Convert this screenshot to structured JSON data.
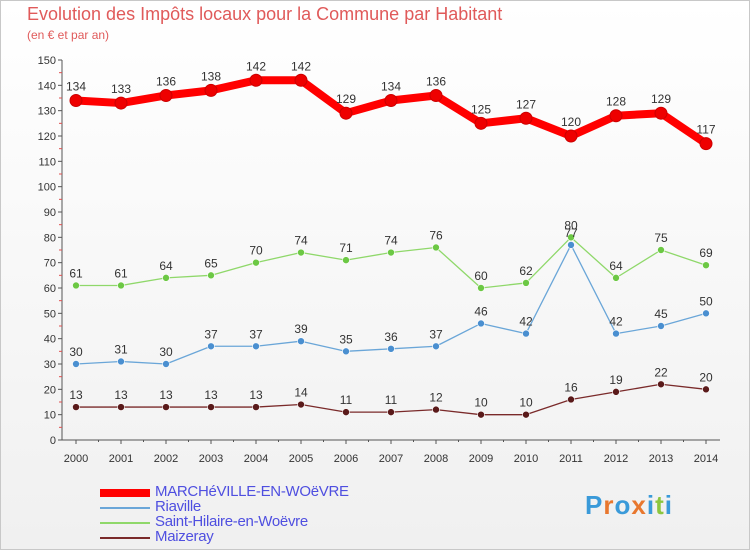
{
  "title": "Evolution des Impôts locaux pour la Commune par Habitant",
  "subtitle": "(en € et par an)",
  "logo": {
    "text": "Proxiti"
  },
  "chart_data": {
    "type": "line",
    "title": "Evolution des Impôts locaux pour la Commune par Habitant",
    "subtitle": "(en € et par an)",
    "xlabel": "",
    "ylabel": "",
    "ylim": [
      0,
      150
    ],
    "yticks": [
      0,
      10,
      20,
      30,
      40,
      50,
      60,
      70,
      80,
      90,
      100,
      110,
      120,
      130,
      140,
      150
    ],
    "categories": [
      "2000",
      "2001",
      "2002",
      "2003",
      "2004",
      "2005",
      "2006",
      "2007",
      "2008",
      "2009",
      "2010",
      "2011",
      "2012",
      "2013",
      "2014"
    ],
    "series": [
      {
        "name": "MARCHéVILLE-EN-WOëVRE",
        "color": "#ff0000",
        "line_color": "#ff0000",
        "marker_color": "#ee0000",
        "values": [
          134,
          133,
          136,
          138,
          142,
          142,
          129,
          134,
          136,
          125,
          127,
          120,
          128,
          129,
          117
        ],
        "labels": [
          "134",
          "133",
          "136",
          "138",
          "142",
          "142",
          "129",
          "134",
          "136",
          "125",
          "127",
          "120",
          "128",
          "129",
          "117"
        ]
      },
      {
        "name": "Riaville",
        "color": "#5b9bd5",
        "line_color": "#6aa6d8",
        "marker_color": "#4a8fd0",
        "values": [
          30,
          31,
          30,
          37,
          37,
          39,
          35,
          36,
          37,
          46,
          42,
          77,
          42,
          45,
          50
        ],
        "labels": [
          "30",
          "31",
          "30",
          "37",
          "37",
          "39",
          "35",
          "36",
          "37",
          "46",
          "42",
          "77",
          "42",
          "45",
          "50"
        ]
      },
      {
        "name": "Saint-Hilaire-en-Woëvre",
        "color": "#7fd05a",
        "line_color": "#8fd86a",
        "marker_color": "#6cc844",
        "values": [
          61,
          61,
          64,
          65,
          70,
          74,
          71,
          74,
          76,
          60,
          62,
          80,
          64,
          75,
          69
        ],
        "labels": [
          "61",
          "61",
          "64",
          "65",
          "70",
          "74",
          "71",
          "74",
          "76",
          "60",
          "62",
          "80",
          "64",
          "75",
          "69"
        ]
      },
      {
        "name": "Maizeray",
        "color": "#7a2a2a",
        "line_color": "#7a2a2a",
        "marker_color": "#5a1a1a",
        "values": [
          13,
          13,
          13,
          13,
          13,
          14,
          11,
          11,
          12,
          10,
          10,
          16,
          19,
          22,
          20
        ],
        "labels": [
          "13",
          "13",
          "13",
          "13",
          "13",
          "14",
          "11",
          "11",
          "12",
          "10",
          "10",
          "16",
          "19",
          "22",
          "20"
        ]
      }
    ],
    "legend_position": "bottom-left",
    "grid": false
  }
}
